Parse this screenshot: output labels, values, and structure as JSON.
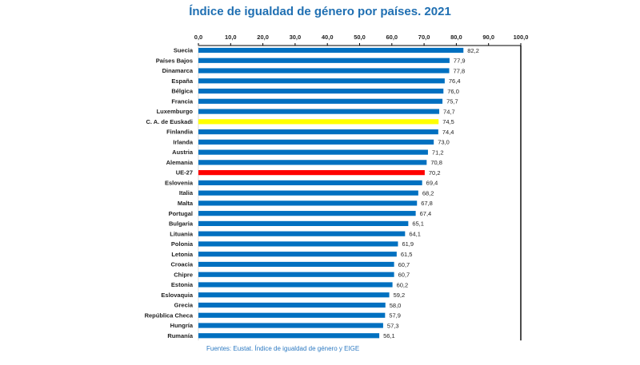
{
  "title": "Índice de igualdad de género por países. 2021",
  "source": "Fuentes: Eustat. Índice de igualdad de género y EIGE",
  "colors": {
    "default_bar": "#0070c0",
    "highlight_euskadi": "#ffff00",
    "highlight_eu": "#ff0000",
    "title": "#1f6fb2"
  },
  "chart_data": {
    "type": "bar",
    "orientation": "horizontal",
    "xlim": [
      0,
      100
    ],
    "x_ticks": [
      "0,0",
      "10,0",
      "20,0",
      "30,0",
      "40,0",
      "50,0",
      "60,0",
      "70,0",
      "80,0",
      "90,0",
      "100,0"
    ],
    "grid": false,
    "categories": [
      "Suecia",
      "Países Bajos",
      "Dinamarca",
      "España",
      "Bélgica",
      "Francia",
      "Luxemburgo",
      "C. A. de Euskadi",
      "Finlandia",
      "Irlanda",
      "Austria",
      "Alemania",
      "UE-27",
      "Eslovenia",
      "Italia",
      "Malta",
      "Portugal",
      "Bulgaria",
      "Lituania",
      "Polonia",
      "Letonia",
      "Croacia",
      "Chipre",
      "Estonia",
      "Eslovaquia",
      "Grecia",
      "República Checa",
      "Hungría",
      "Rumanía"
    ],
    "values": [
      82.2,
      77.9,
      77.8,
      76.4,
      76.0,
      75.7,
      74.7,
      74.5,
      74.4,
      73.0,
      71.2,
      70.8,
      70.2,
      69.4,
      68.2,
      67.8,
      67.4,
      65.1,
      64.1,
      61.9,
      61.5,
      60.7,
      60.7,
      60.2,
      59.2,
      58.0,
      57.9,
      57.3,
      56.1
    ],
    "value_labels": [
      "82,2",
      "77,9",
      "77,8",
      "76,4",
      "76,0",
      "75,7",
      "74,7",
      "74,5",
      "74,4",
      "73,0",
      "71,2",
      "70,8",
      "70,2",
      "69,4",
      "68,2",
      "67,8",
      "67,4",
      "65,1",
      "64,1",
      "61,9",
      "61,5",
      "60,7",
      "60,7",
      "60,2",
      "59,2",
      "58,0",
      "57,9",
      "57,3",
      "56,1"
    ],
    "highlights": {
      "C. A. de Euskadi": "#ffff00",
      "UE-27": "#ff0000"
    }
  }
}
